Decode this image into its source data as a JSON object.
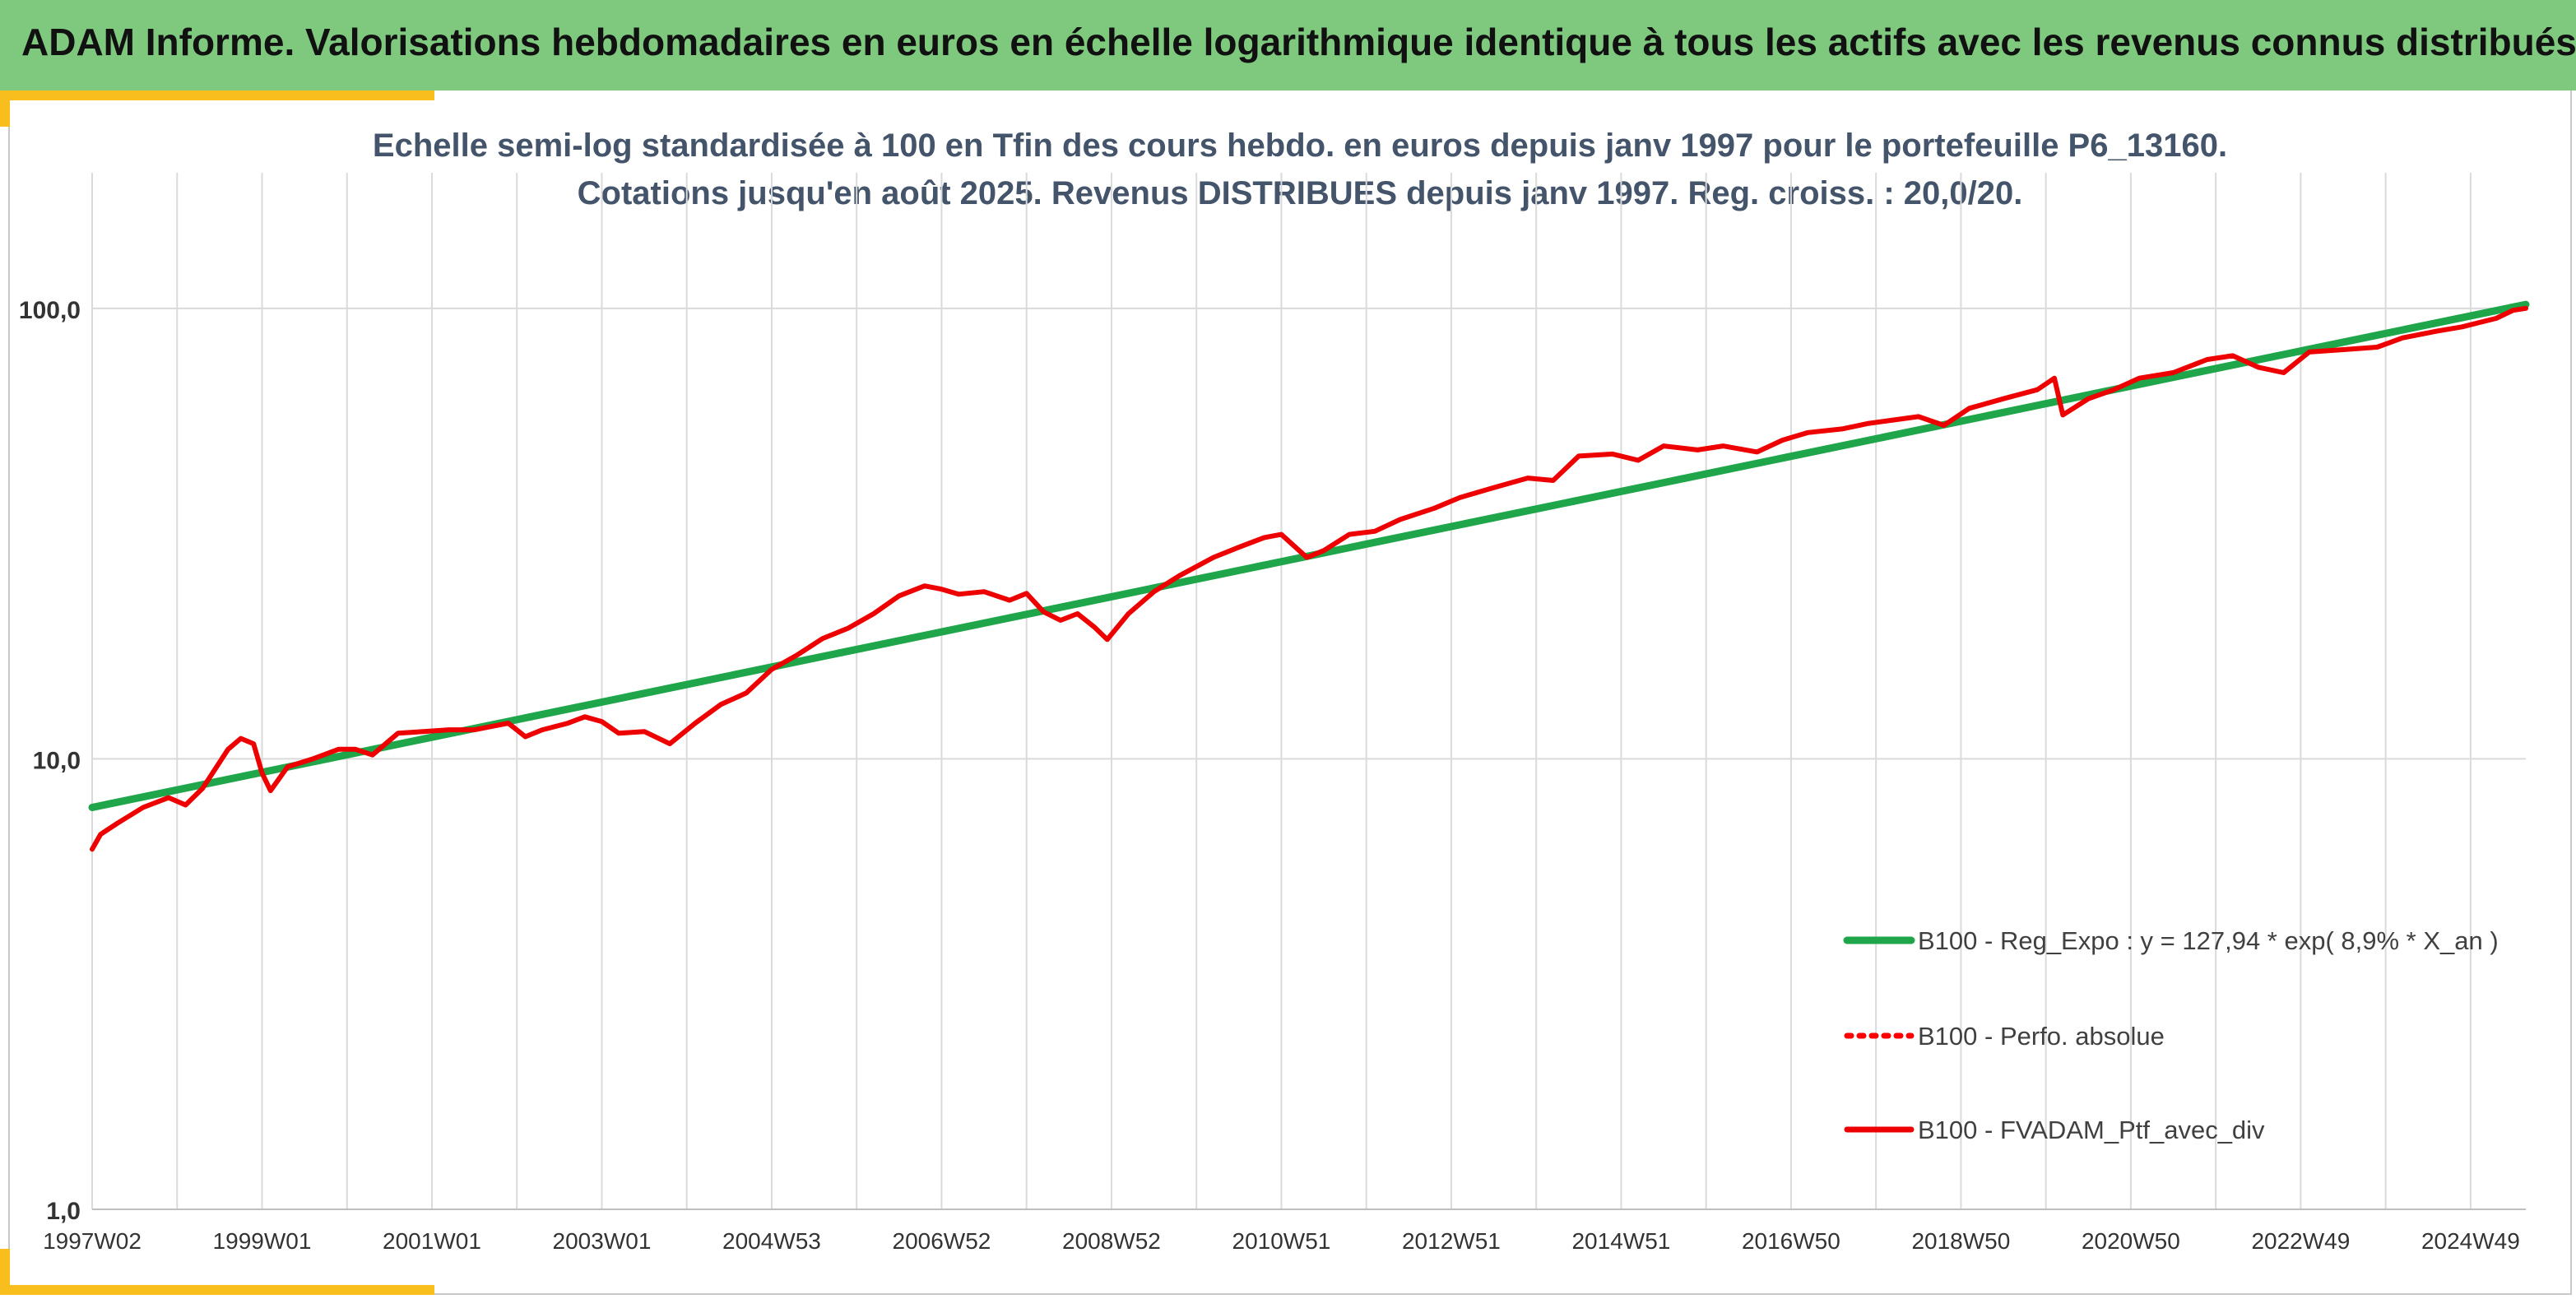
{
  "header": {
    "title": "ADAM Informe. Valorisations hebdomadaires en euros en échelle logarithmique identique à tous les actifs avec les revenus connus distribués"
  },
  "colors": {
    "header_bg": "#7fc97f",
    "accent": "#f7be1e",
    "reg_line": "#1fa64a",
    "perf_line": "#ff0000",
    "ptf_line": "#ee0000",
    "title_text": "#44546a"
  },
  "chart_data": {
    "type": "line",
    "title": "Echelle semi-log standardisée à 100 en Tfin des cours hebdo. en euros depuis janv 1997 pour le portefeuille P6_13160.",
    "subtitle": "Cotations jusqu'en août 2025. Revenus DISTRIBUES depuis janv 1997. Reg. croiss. : 20,0/20.",
    "xlabel": "",
    "ylabel": "",
    "y_scale": "log",
    "ylim": [
      1,
      200
    ],
    "y_ticks": [
      {
        "value": 1,
        "label": "1,0"
      },
      {
        "value": 10,
        "label": "10,0"
      },
      {
        "value": 100,
        "label": "100,0"
      }
    ],
    "x_range": [
      1997.0,
      2025.65
    ],
    "x_ticks": [
      {
        "x": 1997.0,
        "label": "1997W02"
      },
      {
        "x": 1999.0,
        "label": "1999W01"
      },
      {
        "x": 2001.0,
        "label": "2001W01"
      },
      {
        "x": 2003.0,
        "label": "2003W01"
      },
      {
        "x": 2005.0,
        "label": "2004W53"
      },
      {
        "x": 2007.0,
        "label": "2006W52"
      },
      {
        "x": 2009.0,
        "label": "2008W52"
      },
      {
        "x": 2011.0,
        "label": "2010W51"
      },
      {
        "x": 2013.0,
        "label": "2012W51"
      },
      {
        "x": 2015.0,
        "label": "2014W51"
      },
      {
        "x": 2017.0,
        "label": "2016W50"
      },
      {
        "x": 2019.0,
        "label": "2018W50"
      },
      {
        "x": 2021.0,
        "label": "2020W50"
      },
      {
        "x": 2023.0,
        "label": "2022W49"
      },
      {
        "x": 2025.0,
        "label": "2024W49"
      }
    ],
    "grid": "vertical and horizontal",
    "legend_position": "bottom-right",
    "series": [
      {
        "name": "B100 - Reg_Expo : y = 127,94 * exp( 8,9% *  X_an )",
        "style": "solid-thick",
        "color": "#1fa64a",
        "x": [
          1997.0,
          2025.65
        ],
        "y": [
          7.8,
          102
        ]
      },
      {
        "name": "B100 - Perfo. absolue",
        "style": "dotted",
        "color": "#ff0000",
        "x": [],
        "y": []
      },
      {
        "name": "B100 - FVADAM_Ptf_avec_div",
        "style": "solid",
        "color": "#ee0000",
        "x": [
          1997.0,
          1997.1,
          1997.3,
          1997.6,
          1997.9,
          1998.1,
          1998.3,
          1998.6,
          1998.75,
          1998.9,
          1999.0,
          1999.1,
          1999.3,
          1999.6,
          1999.9,
          2000.1,
          2000.3,
          2000.6,
          2000.9,
          2001.2,
          2001.5,
          2001.7,
          2001.9,
          2002.1,
          2002.3,
          2002.6,
          2002.8,
          2003.0,
          2003.2,
          2003.5,
          2003.8,
          2004.1,
          2004.4,
          2004.7,
          2005.0,
          2005.3,
          2005.6,
          2005.9,
          2006.2,
          2006.5,
          2006.8,
          2007.0,
          2007.2,
          2007.5,
          2007.8,
          2008.0,
          2008.2,
          2008.4,
          2008.6,
          2008.8,
          2008.95,
          2009.2,
          2009.5,
          2009.8,
          2010.2,
          2010.5,
          2010.8,
          2011.0,
          2011.3,
          2011.5,
          2011.8,
          2012.1,
          2012.4,
          2012.8,
          2013.1,
          2013.5,
          2013.9,
          2014.2,
          2014.5,
          2014.9,
          2015.2,
          2015.5,
          2015.9,
          2016.2,
          2016.6,
          2016.9,
          2017.2,
          2017.6,
          2017.9,
          2018.2,
          2018.5,
          2018.8,
          2019.1,
          2019.5,
          2019.9,
          2020.1,
          2020.2,
          2020.5,
          2020.8,
          2021.1,
          2021.5,
          2021.9,
          2022.2,
          2022.5,
          2022.8,
          2023.1,
          2023.5,
          2023.9,
          2024.2,
          2024.6,
          2024.9,
          2025.1,
          2025.3,
          2025.5,
          2025.65
        ],
        "y": [
          6.3,
          6.8,
          7.2,
          7.8,
          8.2,
          7.9,
          8.6,
          10.5,
          11.1,
          10.8,
          9.3,
          8.5,
          9.6,
          10.0,
          10.5,
          10.5,
          10.2,
          11.4,
          11.5,
          11.6,
          11.6,
          11.8,
          12.0,
          11.2,
          11.6,
          12.0,
          12.4,
          12.1,
          11.4,
          11.5,
          10.8,
          12.0,
          13.2,
          14.0,
          15.8,
          17.0,
          18.5,
          19.5,
          21.0,
          23.0,
          24.2,
          23.8,
          23.2,
          23.5,
          22.5,
          23.3,
          21.2,
          20.3,
          21.0,
          19.6,
          18.4,
          21.0,
          23.5,
          25.5,
          28.0,
          29.5,
          31.0,
          31.5,
          28.0,
          29.0,
          31.5,
          32.0,
          34.0,
          36.0,
          38.0,
          40.0,
          42.0,
          41.5,
          47.0,
          47.5,
          46.0,
          49.5,
          48.5,
          49.5,
          48.0,
          51.0,
          53.0,
          54.0,
          55.5,
          56.5,
          57.5,
          55.0,
          60.0,
          63.0,
          66.0,
          70.0,
          58.0,
          63.0,
          66.0,
          70.0,
          72.0,
          77.0,
          78.5,
          74.0,
          72.0,
          80.0,
          81.0,
          82.0,
          86.0,
          89.0,
          91.0,
          93.0,
          95.0,
          99.0,
          100.0
        ]
      }
    ]
  }
}
